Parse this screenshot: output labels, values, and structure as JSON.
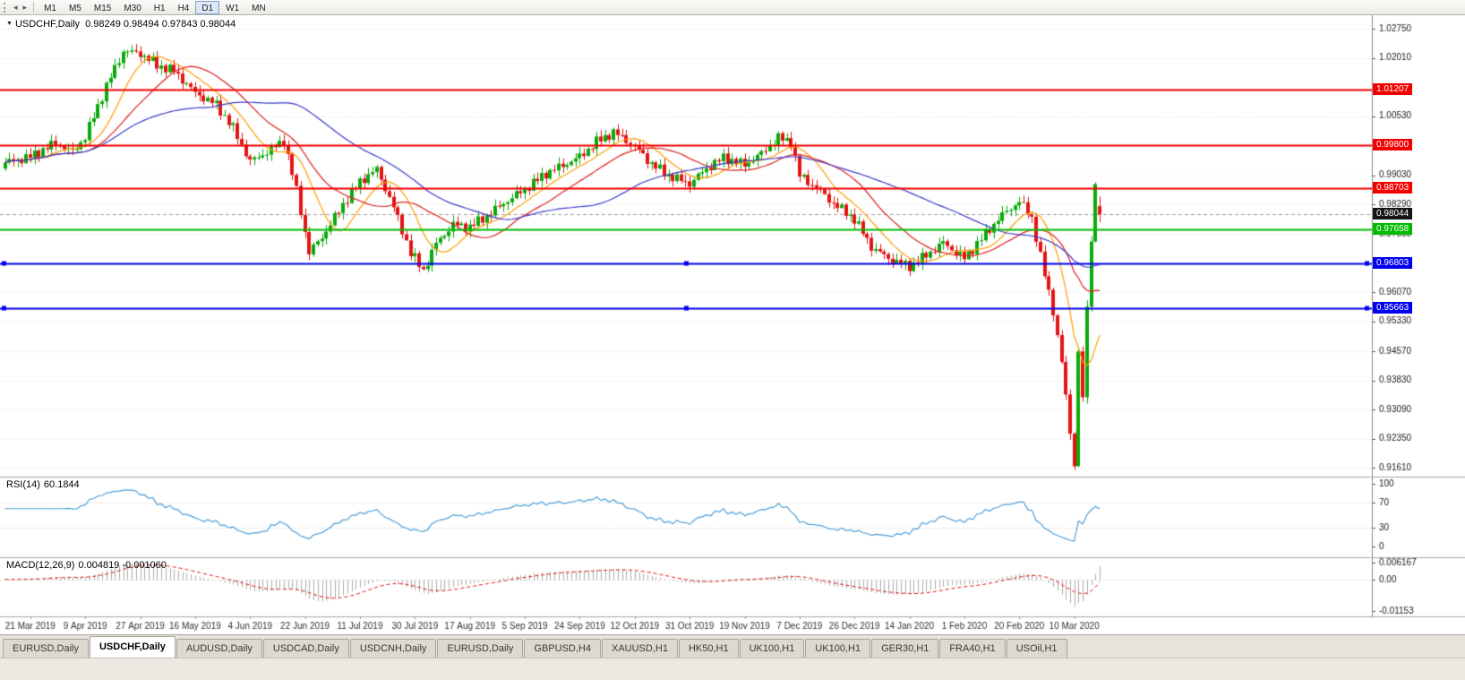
{
  "toolbar": {
    "scroll_left_icon": "◂",
    "scroll_right_icon": "▸",
    "timeframes": [
      "M1",
      "M5",
      "M15",
      "M30",
      "H1",
      "H4",
      "D1",
      "W1",
      "MN"
    ],
    "active_timeframe": "D1"
  },
  "chart_title": {
    "menu_icon": "▼",
    "symbol": "USDCHF,Daily",
    "ohlc": "0.98249 0.98494 0.97843 0.98044"
  },
  "chart_data": {
    "type": "candlestick",
    "symbol": "USDCHF",
    "timeframe": "Daily",
    "current_ohlc": {
      "open": 0.98249,
      "high": 0.98494,
      "low": 0.97843,
      "close": 0.98044
    },
    "current_price": 0.98044,
    "y_axis_ticks": [
      1.0275,
      1.0201,
      1.0053,
      0.9903,
      0.9829,
      0.9755,
      0.9607,
      0.9533,
      0.9457,
      0.9383,
      0.9309,
      0.9235,
      0.9161
    ],
    "price_range": {
      "max": 1.0309,
      "min": 0.9139
    },
    "levels": [
      {
        "value": 1.01207,
        "label": "1.01207",
        "color": "#f00000",
        "type": "resistance",
        "selected": false
      },
      {
        "value": 0.998,
        "label": "0.99800",
        "color": "#f00000",
        "type": "resistance",
        "selected": false
      },
      {
        "value": 0.98703,
        "label": "0.98703",
        "color": "#f00000",
        "type": "resistance",
        "selected": false
      },
      {
        "value": 0.97658,
        "label": "0.97658",
        "color": "#00bb00",
        "type": "support",
        "selected": false
      },
      {
        "value": 0.96803,
        "label": "0.96803",
        "color": "#0000ee",
        "type": "support",
        "selected": true
      },
      {
        "value": 0.95663,
        "label": "0.95663",
        "color": "#0000ee",
        "type": "support",
        "selected": true
      }
    ],
    "x_labels": [
      "21 Mar 2019",
      "9 Apr 2019",
      "27 Apr 2019",
      "16 May 2019",
      "4 Jun 2019",
      "22 Jun 2019",
      "11 Jul 2019",
      "30 Jul 2019",
      "17 Aug 2019",
      "5 Sep 2019",
      "24 Sep 2019",
      "12 Oct 2019",
      "31 Oct 2019",
      "19 Nov 2019",
      "7 Dec 2019",
      "26 Dec 2019",
      "14 Jan 2020",
      "1 Feb 2020",
      "20 Feb 2020",
      "10 Mar 2020"
    ],
    "candles": {
      "count": 260,
      "first_label_index": 6,
      "label_step": 13,
      "up_color": "#0caa0c",
      "down_color": "#e41414",
      "last": {
        "open": 0.98249,
        "high": 0.98494,
        "low": 0.97843,
        "close": 0.98044
      },
      "close_waypoints": [
        [
          0,
          0.9935
        ],
        [
          6,
          0.995
        ],
        [
          12,
          0.9985
        ],
        [
          16,
          0.9962
        ],
        [
          19,
          1.0
        ],
        [
          24,
          1.013
        ],
        [
          28,
          1.0218
        ],
        [
          32,
          1.0212
        ],
        [
          36,
          1.0182
        ],
        [
          40,
          1.0168
        ],
        [
          45,
          1.0112
        ],
        [
          50,
          1.0082
        ],
        [
          54,
          1.0022
        ],
        [
          58,
          0.9938
        ],
        [
          62,
          0.9962
        ],
        [
          66,
          0.9992
        ],
        [
          69,
          0.9865
        ],
        [
          72,
          0.9706
        ],
        [
          76,
          0.9762
        ],
        [
          80,
          0.983
        ],
        [
          84,
          0.9888
        ],
        [
          88,
          0.9918
        ],
        [
          92,
          0.9822
        ],
        [
          96,
          0.9706
        ],
        [
          99,
          0.9662
        ],
        [
          102,
          0.973
        ],
        [
          106,
          0.9778
        ],
        [
          110,
          0.9772
        ],
        [
          114,
          0.98
        ],
        [
          118,
          0.9832
        ],
        [
          123,
          0.9868
        ],
        [
          128,
          0.9908
        ],
        [
          132,
          0.9928
        ],
        [
          136,
          0.995
        ],
        [
          140,
          0.9988
        ],
        [
          144,
          1.0012
        ],
        [
          147,
          0.9992
        ],
        [
          149,
          0.9976
        ],
        [
          153,
          0.9932
        ],
        [
          157,
          0.9902
        ],
        [
          162,
          0.9882
        ],
        [
          166,
          0.992
        ],
        [
          170,
          0.9948
        ],
        [
          175,
          0.993
        ],
        [
          179,
          0.9958
        ],
        [
          183,
          0.9998
        ],
        [
          186,
          0.9988
        ],
        [
          188,
          0.9902
        ],
        [
          192,
          0.9872
        ],
        [
          196,
          0.9832
        ],
        [
          201,
          0.9792
        ],
        [
          205,
          0.9722
        ],
        [
          209,
          0.9692
        ],
        [
          214,
          0.9672
        ],
        [
          218,
          0.97
        ],
        [
          222,
          0.9732
        ],
        [
          227,
          0.9692
        ],
        [
          231,
          0.9742
        ],
        [
          235,
          0.9792
        ],
        [
          240,
          0.9838
        ],
        [
          243,
          0.9795
        ],
        [
          246,
          0.965
        ],
        [
          248,
          0.956
        ],
        [
          250,
          0.943
        ],
        [
          252,
          0.925
        ],
        [
          253,
          0.9172
        ],
        [
          254,
          0.9455
        ],
        [
          255,
          0.934
        ],
        [
          256,
          0.956
        ],
        [
          257,
          0.9745
        ],
        [
          258,
          0.9878
        ],
        [
          259,
          0.98044
        ]
      ]
    },
    "moving_averages": [
      {
        "period": 10,
        "color": "#ff9d00"
      },
      {
        "period": 21,
        "color": "#dd2222"
      },
      {
        "period": 50,
        "color": "#3c3ccc"
      }
    ],
    "rsi": {
      "label": "RSI(14)",
      "value": "60.1844",
      "current_value": 60.1844,
      "period": 14,
      "axis_ticks": [
        100,
        70,
        30,
        0
      ],
      "overbought": 70,
      "oversold": 30,
      "line_color": "#4d9fdb"
    },
    "macd": {
      "label": "MACD(12,26,9)",
      "values": "0.004819 -0.001060",
      "current_main": 0.004819,
      "current_signal": -0.00106,
      "fast_ema": 12,
      "slow_ema": 26,
      "signal_period": 9,
      "axis_ticks": [
        {
          "label": "0.006167",
          "value": 0.006167
        },
        {
          "label": "0.00",
          "value": 0
        },
        {
          "label": "-0.01153",
          "value": -0.01153
        }
      ],
      "histogram_color": "#ababab",
      "signal_color": "#e01414"
    }
  },
  "tabs": {
    "items": [
      "EURUSD,Daily",
      "USDCHF,Daily",
      "AUDUSD,Daily",
      "USDCAD,Daily",
      "USDCNH,Daily",
      "EURUSD,Daily",
      "GBPUSD,H4",
      "XAUUSD,H1",
      "HK50,H1",
      "UK100,H1",
      "UK100,H1",
      "GER30,H1",
      "FRA40,H1",
      "USOil,H1"
    ],
    "active_index": 1
  }
}
